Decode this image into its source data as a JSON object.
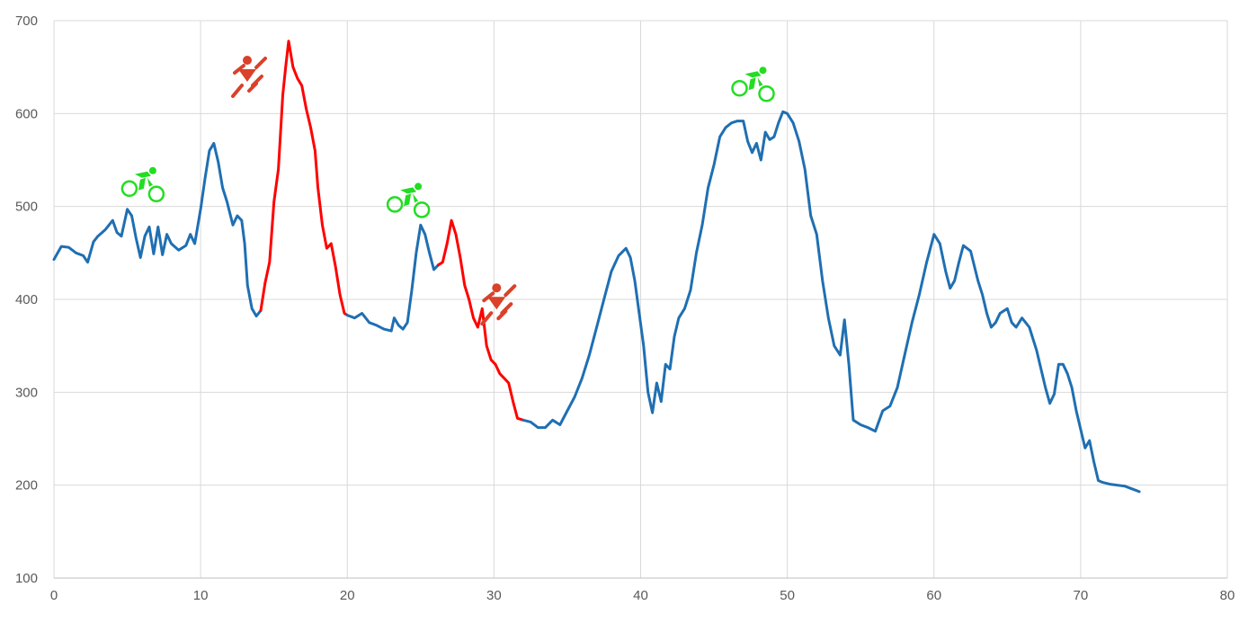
{
  "chart_data": {
    "type": "line",
    "title": "",
    "xlabel": "",
    "ylabel": "",
    "xlim": [
      0,
      80
    ],
    "ylim": [
      100,
      700
    ],
    "x_ticks": [
      "0",
      "10",
      "20",
      "30",
      "40",
      "50",
      "60",
      "70",
      "80"
    ],
    "y_ticks": [
      "100",
      "200",
      "300",
      "400",
      "500",
      "600",
      "700"
    ],
    "grid": true,
    "legend": "none",
    "colors": {
      "ride": "#1f6fb2",
      "push": "#ff0000",
      "bike_icon": "#22dd22",
      "push_icon": "#d9412a"
    },
    "series": [
      {
        "segment": "ride",
        "values": [
          [
            0,
            443
          ],
          [
            0.5,
            457
          ],
          [
            1,
            456
          ],
          [
            1.5,
            450
          ],
          [
            2,
            447
          ],
          [
            2.3,
            440
          ],
          [
            2.7,
            462
          ],
          [
            3,
            468
          ],
          [
            3.5,
            475
          ],
          [
            4,
            485
          ],
          [
            4.3,
            472
          ],
          [
            4.6,
            468
          ],
          [
            5,
            497
          ],
          [
            5.3,
            490
          ],
          [
            5.6,
            466
          ],
          [
            5.9,
            445
          ],
          [
            6.2,
            468
          ],
          [
            6.5,
            478
          ],
          [
            6.8,
            449
          ],
          [
            7.1,
            478
          ],
          [
            7.4,
            448
          ],
          [
            7.7,
            470
          ],
          [
            8,
            460
          ],
          [
            8.5,
            453
          ],
          [
            9,
            458
          ],
          [
            9.3,
            470
          ],
          [
            9.6,
            460
          ],
          [
            10,
            497
          ],
          [
            10.3,
            530
          ],
          [
            10.6,
            560
          ],
          [
            10.9,
            568
          ],
          [
            11.2,
            548
          ],
          [
            11.5,
            520
          ],
          [
            11.8,
            505
          ],
          [
            12.2,
            480
          ],
          [
            12.5,
            490
          ],
          [
            12.8,
            485
          ],
          [
            13,
            460
          ],
          [
            13.2,
            415
          ],
          [
            13.5,
            390
          ],
          [
            13.8,
            382
          ],
          [
            14.1,
            388
          ]
        ]
      },
      {
        "segment": "push",
        "values": [
          [
            14.1,
            388
          ],
          [
            14.4,
            418
          ],
          [
            14.7,
            440
          ],
          [
            15,
            505
          ],
          [
            15.3,
            540
          ],
          [
            15.6,
            620
          ],
          [
            15.8,
            650
          ],
          [
            16,
            678
          ],
          [
            16.3,
            650
          ],
          [
            16.6,
            638
          ],
          [
            16.9,
            630
          ],
          [
            17.2,
            605
          ],
          [
            17.5,
            585
          ],
          [
            17.8,
            560
          ],
          [
            18,
            520
          ],
          [
            18.3,
            480
          ],
          [
            18.6,
            455
          ],
          [
            18.9,
            460
          ],
          [
            19.2,
            435
          ],
          [
            19.5,
            405
          ],
          [
            19.8,
            385
          ],
          [
            20,
            383
          ]
        ]
      },
      {
        "segment": "ride",
        "values": [
          [
            20,
            383
          ],
          [
            20.5,
            380
          ],
          [
            21,
            385
          ],
          [
            21.5,
            375
          ],
          [
            22,
            372
          ],
          [
            22.5,
            368
          ],
          [
            23,
            366
          ],
          [
            23.2,
            380
          ],
          [
            23.5,
            372
          ],
          [
            23.8,
            368
          ],
          [
            24.1,
            375
          ],
          [
            24.4,
            410
          ],
          [
            24.7,
            450
          ],
          [
            25,
            480
          ],
          [
            25.3,
            470
          ],
          [
            25.6,
            450
          ],
          [
            25.9,
            432
          ],
          [
            26.2,
            437
          ]
        ]
      },
      {
        "segment": "push",
        "values": [
          [
            26.2,
            437
          ],
          [
            26.5,
            440
          ],
          [
            26.8,
            460
          ],
          [
            27.1,
            485
          ],
          [
            27.4,
            470
          ],
          [
            27.7,
            445
          ],
          [
            28,
            415
          ],
          [
            28.3,
            400
          ],
          [
            28.6,
            380
          ],
          [
            28.9,
            370
          ],
          [
            29.2,
            390
          ],
          [
            29.5,
            350
          ],
          [
            29.8,
            335
          ],
          [
            30.1,
            330
          ],
          [
            30.4,
            320
          ],
          [
            30.7,
            315
          ],
          [
            31,
            310
          ],
          [
            31.3,
            290
          ],
          [
            31.6,
            272
          ],
          [
            32,
            270
          ]
        ]
      },
      {
        "segment": "ride",
        "values": [
          [
            32,
            270
          ],
          [
            32.5,
            268
          ],
          [
            33,
            262
          ],
          [
            33.5,
            262
          ],
          [
            34,
            270
          ],
          [
            34.5,
            265
          ],
          [
            35,
            280
          ],
          [
            35.5,
            295
          ],
          [
            36,
            315
          ],
          [
            36.5,
            340
          ],
          [
            37,
            370
          ],
          [
            37.5,
            400
          ],
          [
            38,
            430
          ],
          [
            38.5,
            447
          ],
          [
            39,
            455
          ],
          [
            39.3,
            445
          ],
          [
            39.6,
            420
          ],
          [
            39.9,
            385
          ],
          [
            40.2,
            350
          ],
          [
            40.5,
            300
          ],
          [
            40.8,
            278
          ],
          [
            41.1,
            310
          ],
          [
            41.4,
            290
          ],
          [
            41.7,
            330
          ],
          [
            42,
            325
          ],
          [
            42.3,
            360
          ],
          [
            42.6,
            380
          ],
          [
            43,
            390
          ],
          [
            43.4,
            410
          ],
          [
            43.8,
            450
          ],
          [
            44.2,
            480
          ],
          [
            44.6,
            520
          ],
          [
            45,
            545
          ],
          [
            45.4,
            575
          ],
          [
            45.8,
            585
          ],
          [
            46.2,
            590
          ],
          [
            46.6,
            592
          ],
          [
            47,
            592
          ],
          [
            47.3,
            570
          ],
          [
            47.6,
            558
          ],
          [
            47.9,
            568
          ],
          [
            48.2,
            550
          ],
          [
            48.5,
            580
          ],
          [
            48.8,
            572
          ],
          [
            49.1,
            575
          ],
          [
            49.4,
            590
          ],
          [
            49.7,
            602
          ],
          [
            50,
            600
          ],
          [
            50.4,
            590
          ],
          [
            50.8,
            570
          ],
          [
            51.2,
            540
          ],
          [
            51.6,
            490
          ],
          [
            52,
            470
          ],
          [
            52.4,
            420
          ],
          [
            52.8,
            380
          ],
          [
            53.2,
            350
          ],
          [
            53.6,
            340
          ],
          [
            53.9,
            378
          ],
          [
            54.2,
            330
          ],
          [
            54.5,
            270
          ],
          [
            55,
            265
          ],
          [
            55.5,
            262
          ],
          [
            56,
            258
          ],
          [
            56.5,
            280
          ],
          [
            57,
            285
          ],
          [
            57.5,
            305
          ],
          [
            58,
            340
          ],
          [
            58.5,
            375
          ],
          [
            59,
            405
          ],
          [
            59.5,
            440
          ],
          [
            60,
            470
          ],
          [
            60.4,
            460
          ],
          [
            60.8,
            430
          ],
          [
            61.1,
            412
          ],
          [
            61.4,
            420
          ],
          [
            61.7,
            440
          ],
          [
            62,
            458
          ],
          [
            62.5,
            452
          ],
          [
            63,
            420
          ],
          [
            63.3,
            405
          ],
          [
            63.6,
            385
          ],
          [
            63.9,
            370
          ],
          [
            64.2,
            375
          ],
          [
            64.5,
            385
          ],
          [
            65,
            390
          ],
          [
            65.3,
            375
          ],
          [
            65.6,
            370
          ],
          [
            66,
            380
          ],
          [
            66.5,
            370
          ],
          [
            67,
            345
          ],
          [
            67.3,
            325
          ],
          [
            67.6,
            305
          ],
          [
            67.9,
            288
          ],
          [
            68.2,
            298
          ],
          [
            68.5,
            330
          ],
          [
            68.8,
            330
          ],
          [
            69.1,
            320
          ],
          [
            69.4,
            305
          ],
          [
            69.7,
            280
          ],
          [
            70,
            260
          ],
          [
            70.3,
            240
          ],
          [
            70.6,
            248
          ],
          [
            70.9,
            225
          ],
          [
            71.2,
            205
          ],
          [
            71.5,
            203
          ],
          [
            72,
            201
          ],
          [
            72.5,
            200
          ],
          [
            73,
            199
          ],
          [
            73.5,
            196
          ],
          [
            74,
            193
          ]
        ]
      }
    ],
    "annotations": [
      {
        "icon": "bike-icon",
        "x": 6,
        "y": 525
      },
      {
        "icon": "push-bike-icon",
        "x": 13.3,
        "y": 640
      },
      {
        "icon": "bike-icon",
        "x": 24.1,
        "y": 508
      },
      {
        "icon": "push-bike-icon",
        "x": 30.3,
        "y": 395
      },
      {
        "icon": "bike-icon",
        "x": 47.6,
        "y": 633
      }
    ]
  }
}
